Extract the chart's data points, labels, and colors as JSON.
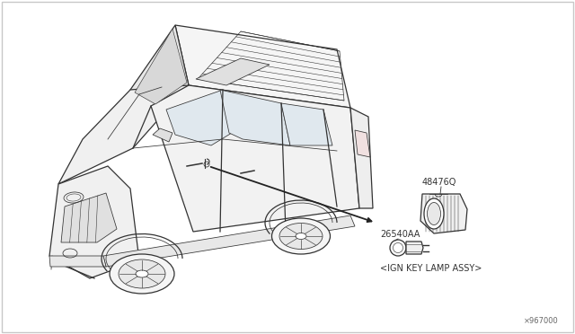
{
  "background_color": "#ffffff",
  "border_color": "#c8c8c8",
  "part_number_1": "48476Q",
  "part_number_2": "26540AA",
  "part_label": "<IGN KEY LAMP ASSY>",
  "diagram_code": "×967000",
  "line_color": "#333333",
  "text_color": "#333333",
  "arrow_color": "#222222",
  "font_size_part": 7.0,
  "font_size_label": 7.0,
  "font_size_code": 6.0,
  "figsize": [
    6.4,
    3.72
  ],
  "dpi": 100
}
